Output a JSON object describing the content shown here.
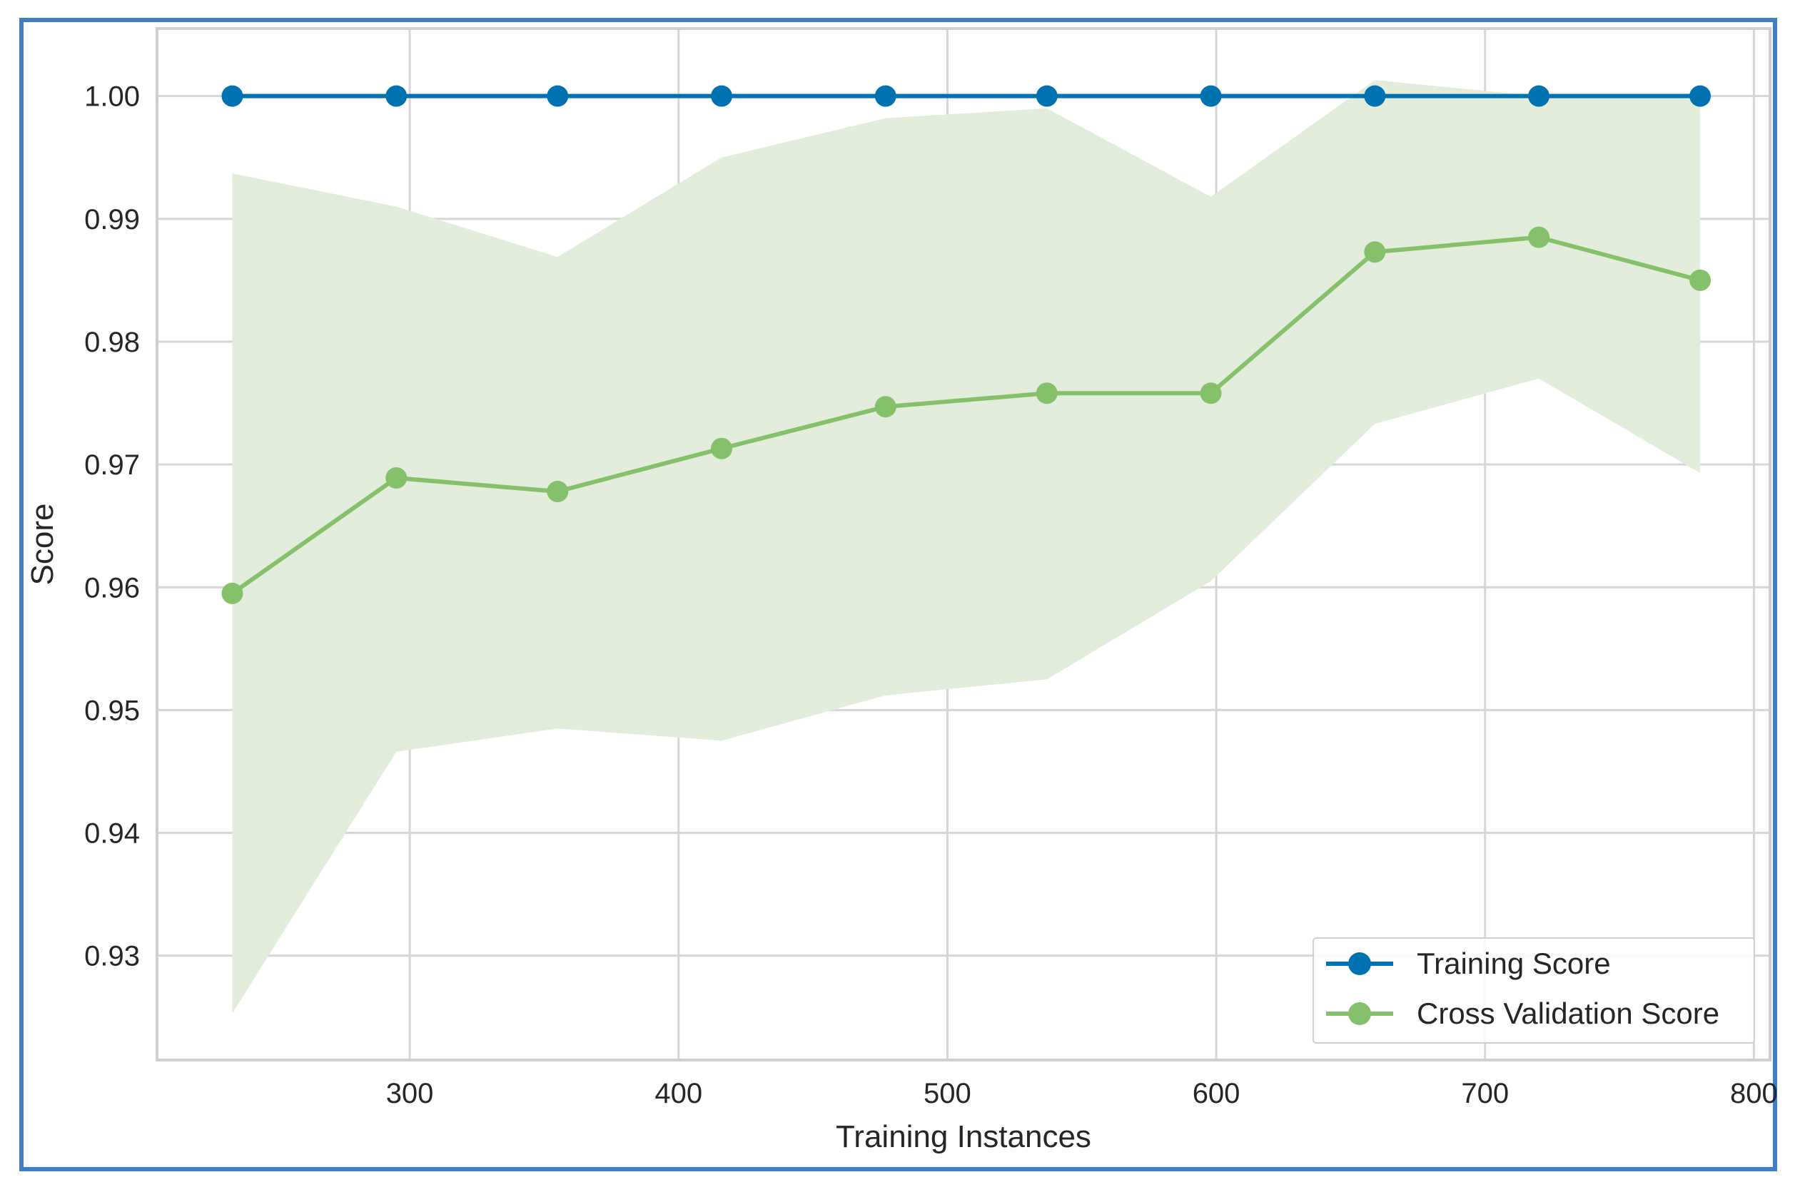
{
  "colors": {
    "frame": "#3f7fc4",
    "training": "#0072b2",
    "cv": "#85c06a",
    "band": "#e2eedb",
    "grid": "#d6d6d6",
    "text": "#262626"
  },
  "chart_data": {
    "type": "line",
    "title": "",
    "xlabel": "Training Instances",
    "ylabel": "Score",
    "xlim": [
      206,
      806
    ],
    "ylim": [
      0.9215,
      1.0055
    ],
    "grid": true,
    "legend_position": "lower-right",
    "xticks": [
      300,
      400,
      500,
      600,
      700,
      800
    ],
    "xtick_labels": [
      "300",
      "400",
      "500",
      "600",
      "700",
      "800"
    ],
    "yticks": [
      0.93,
      0.94,
      0.95,
      0.96,
      0.97,
      0.98,
      0.99,
      1.0
    ],
    "ytick_labels": [
      "0.93",
      "0.94",
      "0.95",
      "0.96",
      "0.97",
      "0.98",
      "0.99",
      "1.00"
    ],
    "x": [
      234,
      295,
      355,
      416,
      477,
      537,
      598,
      659,
      720,
      780
    ],
    "series": [
      {
        "name": "Training Score",
        "values": [
          1.0,
          1.0,
          1.0,
          1.0,
          1.0,
          1.0,
          1.0,
          1.0,
          1.0,
          1.0
        ],
        "band_lower": [
          1.0,
          1.0,
          1.0,
          1.0,
          1.0,
          1.0,
          1.0,
          1.0,
          1.0,
          1.0
        ],
        "band_upper": [
          1.0,
          1.0,
          1.0,
          1.0,
          1.0,
          1.0,
          1.0,
          1.0,
          1.0,
          1.0
        ]
      },
      {
        "name": "Cross Validation Score",
        "values": [
          0.9595,
          0.9689,
          0.9678,
          0.9713,
          0.9747,
          0.9758,
          0.9758,
          0.9873,
          0.9885,
          0.985
        ],
        "band_lower": [
          0.9253,
          0.9466,
          0.9485,
          0.9475,
          0.9512,
          0.9525,
          0.9605,
          0.9733,
          0.977,
          0.9693
        ],
        "band_upper": [
          0.9937,
          0.991,
          0.9869,
          0.995,
          0.9982,
          0.999,
          0.9918,
          1.0013,
          1.0,
          1.0
        ]
      }
    ]
  }
}
